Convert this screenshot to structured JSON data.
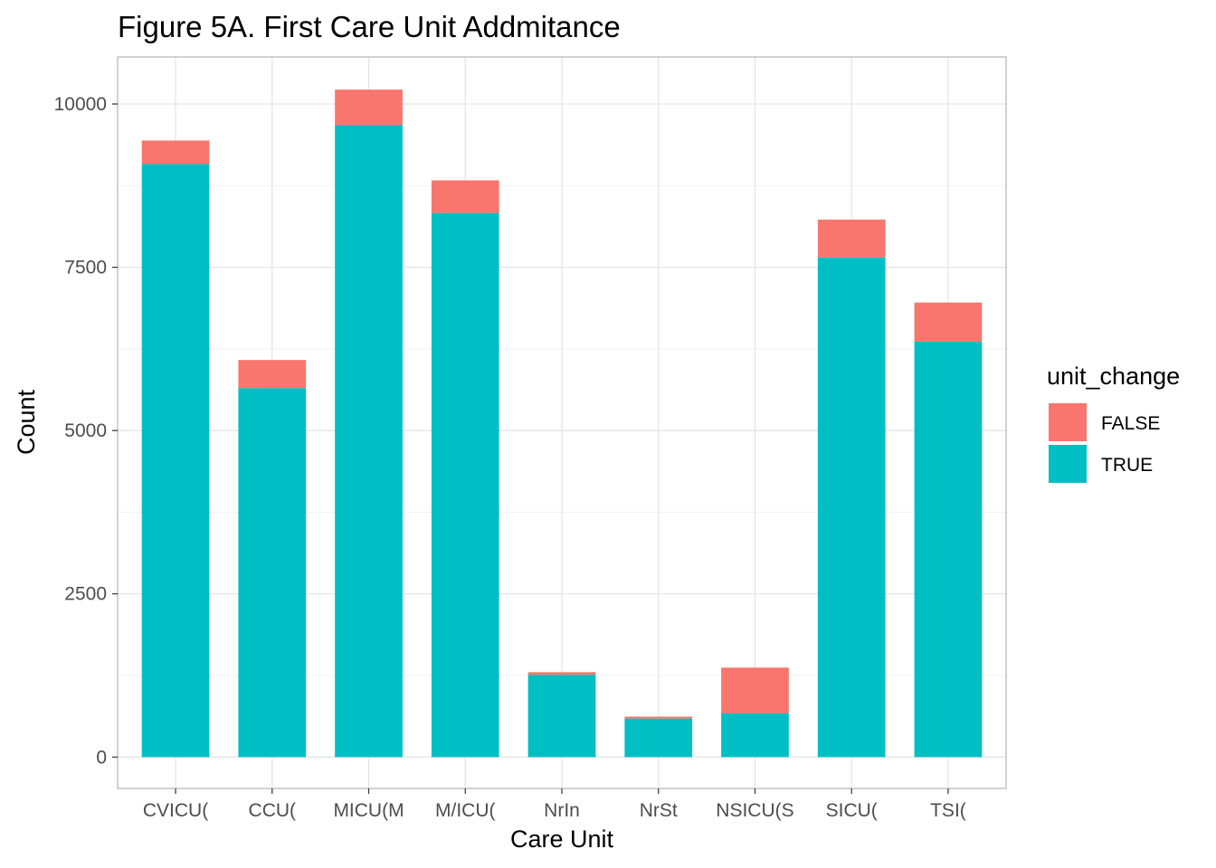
{
  "chart_data": {
    "type": "bar",
    "stacked": true,
    "title": "Figure 5A. First Care Unit Addmitance",
    "xlabel": "Care Unit",
    "ylabel": "Count",
    "ylim": [
      -480,
      10720
    ],
    "yticks": [
      0,
      2500,
      5000,
      7500,
      10000
    ],
    "yticks_labels": [
      "0",
      "2500",
      "5000",
      "7500",
      "10000"
    ],
    "grid": true,
    "legend_position": "right",
    "legend_title": "unit_change",
    "categories": [
      "CVICU(",
      "CCU(",
      "MICU(M",
      "M/ICU(",
      "NrIn",
      "NrSt",
      "NSICU(S",
      "SICU(",
      "TSI("
    ],
    "series": [
      {
        "name": "TRUE",
        "color": "#00BFC4",
        "values": [
          9080,
          5650,
          9680,
          8330,
          1260,
          590,
          670,
          7650,
          6360
        ]
      },
      {
        "name": "FALSE",
        "color": "#F8766D",
        "values": [
          360,
          430,
          540,
          500,
          40,
          30,
          700,
          580,
          600
        ]
      }
    ]
  }
}
